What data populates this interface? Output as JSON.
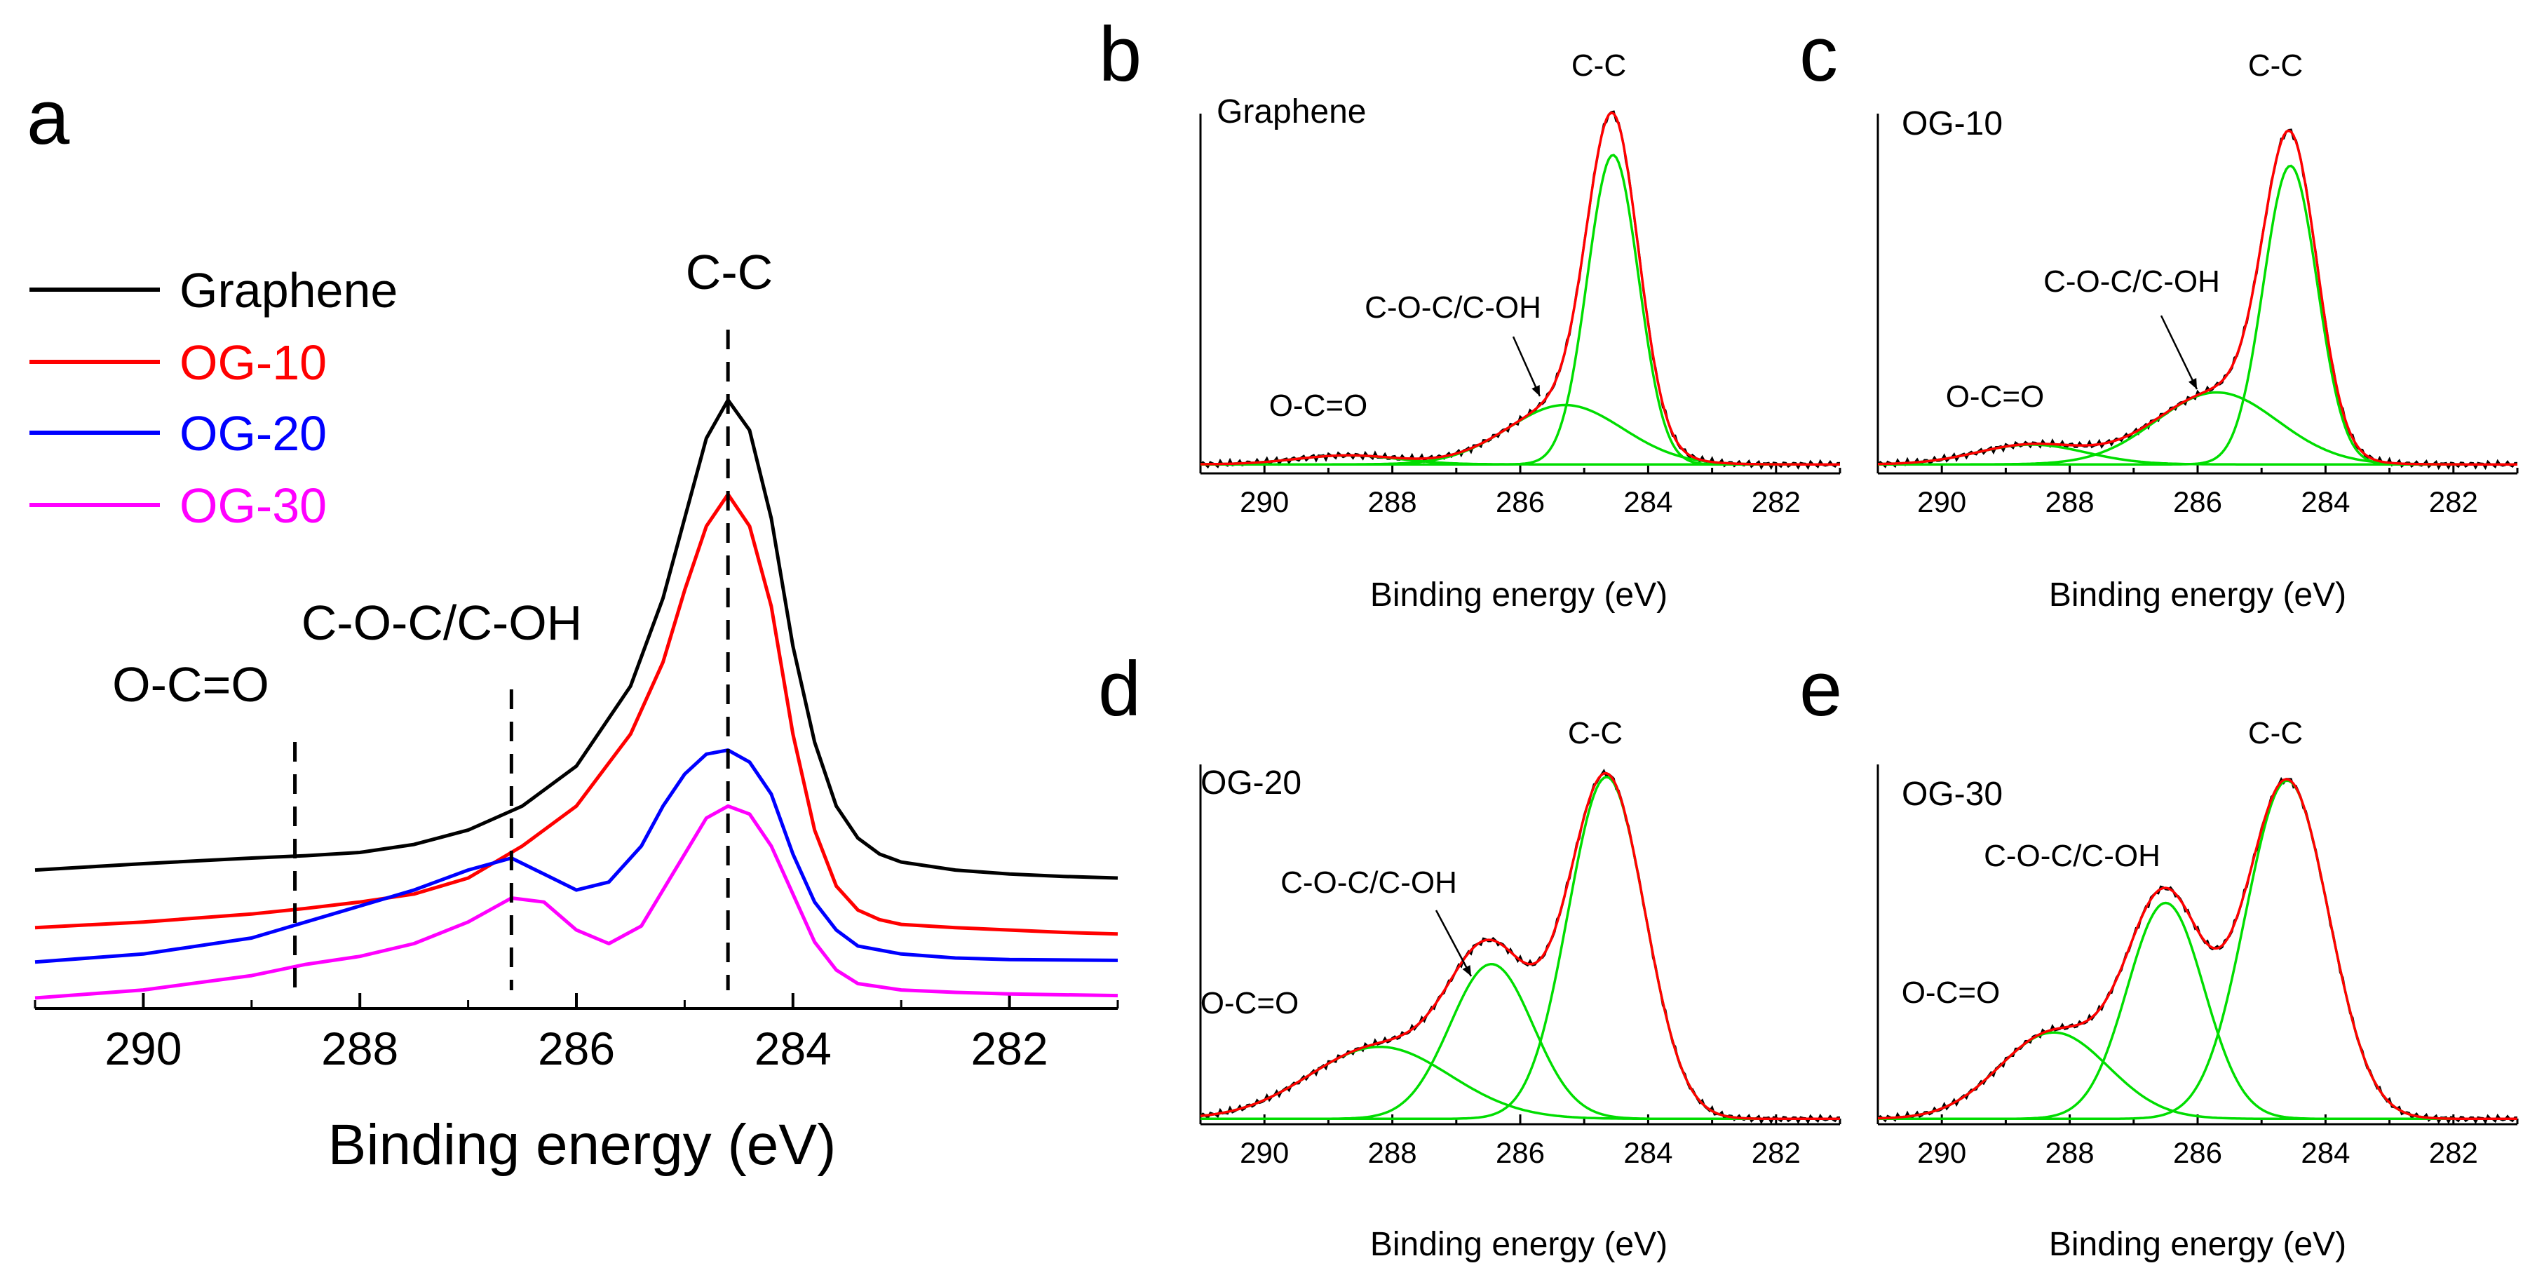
{
  "chart_data": [
    {
      "panel": "a",
      "type": "line",
      "xlabel": "Binding energy (eV)",
      "ylabel": "",
      "xlim": [
        291,
        281
      ],
      "ylim": [
        0,
        10
      ],
      "xticks": [
        290,
        288,
        286,
        284,
        282
      ],
      "legend": "top-left",
      "series": [
        {
          "name": "Graphene",
          "color": "#000000",
          "x": [
            291,
            290,
            289,
            288.5,
            288,
            287.5,
            287,
            286.5,
            286,
            285.5,
            285.2,
            285,
            284.8,
            284.6,
            284.4,
            284.2,
            284,
            283.8,
            283.6,
            283.4,
            283.2,
            283,
            282.5,
            282,
            281.5,
            281
          ],
          "y": [
            2.1,
            2.18,
            2.25,
            2.28,
            2.32,
            2.42,
            2.6,
            2.9,
            3.4,
            4.4,
            5.5,
            6.5,
            7.5,
            7.98,
            7.6,
            6.5,
            4.9,
            3.7,
            2.9,
            2.5,
            2.3,
            2.2,
            2.1,
            2.05,
            2.02,
            2.0
          ]
        },
        {
          "name": "OG-10",
          "color": "#ff0000",
          "x": [
            291,
            290,
            289,
            288.5,
            288,
            287.5,
            287,
            286.5,
            286,
            285.5,
            285.2,
            285,
            284.8,
            284.6,
            284.4,
            284.2,
            284,
            283.8,
            283.6,
            283.4,
            283.2,
            283,
            282.5,
            282,
            281.5,
            281
          ],
          "y": [
            1.38,
            1.45,
            1.55,
            1.62,
            1.7,
            1.8,
            2.0,
            2.4,
            2.9,
            3.8,
            4.7,
            5.6,
            6.4,
            6.8,
            6.4,
            5.4,
            3.8,
            2.6,
            1.9,
            1.6,
            1.48,
            1.42,
            1.38,
            1.35,
            1.32,
            1.3
          ]
        },
        {
          "name": "OG-20",
          "color": "#0000ff",
          "x": [
            291,
            290,
            289,
            288.5,
            288,
            287.5,
            287,
            286.6,
            286.3,
            286,
            285.7,
            285.4,
            285.2,
            285,
            284.8,
            284.6,
            284.4,
            284.2,
            284,
            283.8,
            283.6,
            283.4,
            283,
            282.5,
            282,
            281
          ],
          "y": [
            0.95,
            1.05,
            1.25,
            1.45,
            1.65,
            1.85,
            2.1,
            2.25,
            2.05,
            1.85,
            1.95,
            2.4,
            2.9,
            3.3,
            3.55,
            3.6,
            3.45,
            3.05,
            2.3,
            1.7,
            1.35,
            1.15,
            1.05,
            1.0,
            0.98,
            0.97
          ]
        },
        {
          "name": "OG-30",
          "color": "#ff00ff",
          "x": [
            291,
            290,
            289,
            288.5,
            288,
            287.5,
            287,
            286.6,
            286.3,
            286,
            285.7,
            285.4,
            285.2,
            285,
            284.8,
            284.6,
            284.4,
            284.2,
            284,
            283.8,
            283.6,
            283.4,
            283,
            282.5,
            282,
            281
          ],
          "y": [
            0.5,
            0.6,
            0.78,
            0.92,
            1.02,
            1.18,
            1.45,
            1.75,
            1.7,
            1.35,
            1.18,
            1.4,
            1.85,
            2.3,
            2.75,
            2.9,
            2.8,
            2.4,
            1.8,
            1.2,
            0.85,
            0.68,
            0.6,
            0.57,
            0.55,
            0.53
          ]
        }
      ],
      "reference_lines": [
        {
          "x": 288.6,
          "label": "O-C=O"
        },
        {
          "x": 286.6,
          "label": "C-O-C/C-OH"
        },
        {
          "x": 284.6,
          "label": "C-C"
        }
      ]
    },
    {
      "panel": "b",
      "type": "line",
      "sample": "Graphene",
      "xlabel": "Binding energy (eV)",
      "xlim": [
        291,
        281
      ],
      "ylim": [
        0,
        10
      ],
      "xticks": [
        290,
        288,
        286,
        284,
        282
      ],
      "peaks": [
        {
          "label": "C-C",
          "center": 284.55,
          "height": 8.6,
          "sigma": 0.4
        },
        {
          "label": "C-O-C/C-OH",
          "center": 285.3,
          "height": 1.65,
          "sigma": 0.9
        },
        {
          "label": "O-C=O",
          "center": 288.7,
          "height": 0.25,
          "sigma": 0.8
        }
      ],
      "baseline": 0.25,
      "annotations": [
        "C-C",
        "C-O-C/C-OH",
        "O-C=O"
      ]
    },
    {
      "panel": "c",
      "type": "line",
      "sample": "OG-10",
      "xlabel": "Binding energy (eV)",
      "xlim": [
        291,
        281
      ],
      "ylim": [
        0,
        10
      ],
      "xticks": [
        290,
        288,
        286,
        284,
        282
      ],
      "peaks": [
        {
          "label": "C-C",
          "center": 284.55,
          "height": 8.3,
          "sigma": 0.42
        },
        {
          "label": "C-O-C/C-OH",
          "center": 285.7,
          "height": 2.0,
          "sigma": 0.95
        },
        {
          "label": "O-C=O",
          "center": 288.6,
          "height": 0.55,
          "sigma": 0.85
        }
      ],
      "baseline": 0.25,
      "annotations": [
        "C-C",
        "C-O-C/C-OH",
        "O-C=O"
      ]
    },
    {
      "panel": "d",
      "type": "line",
      "sample": "OG-20",
      "xlabel": "Binding energy (eV)",
      "xlim": [
        291,
        281
      ],
      "ylim": [
        0,
        10
      ],
      "xticks": [
        290,
        288,
        286,
        284,
        282
      ],
      "peaks": [
        {
          "label": "C-C",
          "center": 284.65,
          "height": 9.5,
          "sigma": 0.6
        },
        {
          "label": "C-O-C/C-OH",
          "center": 286.45,
          "height": 4.3,
          "sigma": 0.65
        },
        {
          "label": "O-C=O",
          "center": 288.2,
          "height": 2.0,
          "sigma": 1.1
        }
      ],
      "baseline": 0.15,
      "annotations": [
        "C-C",
        "C-O-C/C-OH",
        "O-C=O"
      ]
    },
    {
      "panel": "e",
      "type": "line",
      "sample": "OG-30",
      "xlabel": "Binding energy (eV)",
      "xlim": [
        291,
        281
      ],
      "ylim": [
        0,
        10
      ],
      "xticks": [
        290,
        288,
        286,
        284,
        282
      ],
      "peaks": [
        {
          "label": "C-C",
          "center": 284.6,
          "height": 9.4,
          "sigma": 0.65
        },
        {
          "label": "C-O-C/C-OH",
          "center": 286.5,
          "height": 6.0,
          "sigma": 0.6
        },
        {
          "label": "O-C=O",
          "center": 288.25,
          "height": 2.4,
          "sigma": 0.85
        }
      ],
      "baseline": 0.15,
      "annotations": [
        "C-C",
        "C-O-C/C-OH",
        "O-C=O"
      ]
    }
  ],
  "colors": {
    "fit": "#ff0000",
    "component": "#00dd00",
    "data": "#000000",
    "axis": "#000000"
  }
}
